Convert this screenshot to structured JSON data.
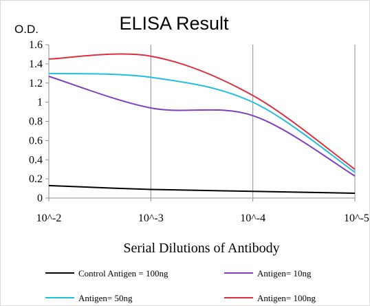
{
  "chart_data": {
    "type": "line",
    "title": "ELISA Result",
    "ylabel": "O.D.",
    "xlabel": "Serial Dilutions of Antibody",
    "categories": [
      "10^-2",
      "10^-3",
      "10^-4",
      "10^-5"
    ],
    "ylim": [
      0,
      1.6
    ],
    "yticks": [
      "0",
      "0.2",
      "0.4",
      "0.6",
      "0.8",
      "1",
      "1.2",
      "1.4",
      "1.6"
    ],
    "grid": "vertical",
    "legend_position": "bottom",
    "series": [
      {
        "name": "Control Antigen = 100ng",
        "color": "#000000",
        "values": [
          0.13,
          0.09,
          0.07,
          0.05
        ]
      },
      {
        "name": "Antigen= 10ng",
        "color": "#7f3fbf",
        "values": [
          1.27,
          0.94,
          0.86,
          0.23
        ]
      },
      {
        "name": "Antigen= 50ng",
        "color": "#1fbfdf",
        "values": [
          1.3,
          1.26,
          1.0,
          0.27
        ]
      },
      {
        "name": "Antigen= 100ng",
        "color": "#df2f3f",
        "values": [
          1.45,
          1.48,
          1.07,
          0.3
        ]
      }
    ]
  }
}
